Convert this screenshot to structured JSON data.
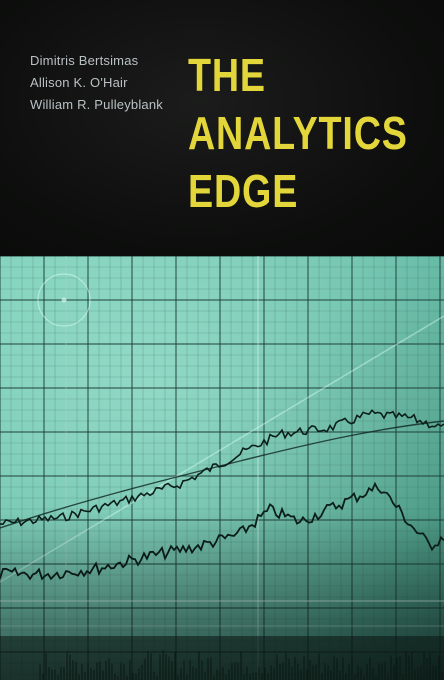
{
  "authors": [
    "Dimitris Bertsimas",
    "Allison K. O'Hair",
    "William R. Pulleyblank"
  ],
  "title_lines": [
    "THE",
    "ANALYTICS",
    "EDGE"
  ],
  "colors": {
    "background": "#0d0e0d",
    "author_text": "#b9c1c4",
    "title_text": "#e2d63a",
    "photo_tint": "#7fd9c4"
  }
}
